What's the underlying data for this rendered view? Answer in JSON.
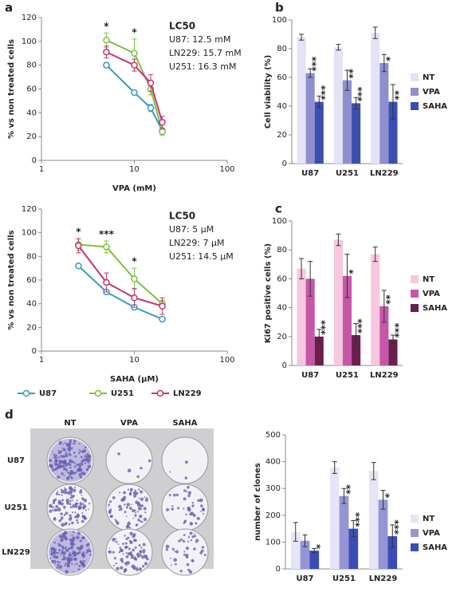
{
  "chart_data": [
    {
      "type": "line",
      "panel": "a",
      "x_label": "VPA (mM)",
      "y_label": "% vs non treated cells",
      "xscale": "log",
      "xlim": [
        1,
        100
      ],
      "xticks": [
        1,
        10,
        100
      ],
      "ylim": [
        0,
        120
      ],
      "yticks": [
        0,
        20,
        40,
        60,
        80,
        100,
        120
      ],
      "x": [
        5,
        10,
        15,
        20
      ],
      "annotations": [
        "*",
        "*",
        null,
        null
      ],
      "lc50_title": "LC50",
      "lc50_lines": [
        "U87: 12.5 mM",
        "LN229: 15.7 mM",
        "U251: 16.3 mM"
      ],
      "series": [
        {
          "name": "U87",
          "color": "#3a9ac4",
          "values": [
            80,
            57,
            44,
            25
          ],
          "errors": [
            2,
            1,
            3,
            2
          ]
        },
        {
          "name": "U251",
          "color": "#7cc242",
          "values": [
            101,
            90,
            60,
            24
          ],
          "errors": [
            6,
            12,
            5,
            3
          ]
        },
        {
          "name": "LN229",
          "color": "#c8336b",
          "values": [
            91,
            80,
            65,
            32
          ],
          "errors": [
            5,
            5,
            7,
            5
          ]
        }
      ]
    },
    {
      "type": "line",
      "x_label": "SAHA (µM)",
      "y_label": "% vs non treated cells",
      "xscale": "log",
      "xlim": [
        1,
        100
      ],
      "xticks": [
        1,
        10,
        100
      ],
      "ylim": [
        0,
        120
      ],
      "yticks": [
        0,
        20,
        40,
        60,
        80,
        100,
        120
      ],
      "x": [
        2.5,
        5,
        10,
        20
      ],
      "annotations": [
        "*",
        "***",
        "*",
        null
      ],
      "lc50_title": "LC50",
      "lc50_lines": [
        "U87: 5 µM",
        "LN229: 7 µM",
        "U251: 14.5 µM"
      ],
      "series": [
        {
          "color": "#3a9ac4",
          "values": [
            72,
            50,
            37,
            27
          ],
          "errors": [
            1,
            2,
            2,
            2
          ]
        },
        {
          "color": "#7cc242",
          "values": [
            90,
            88,
            61,
            40
          ],
          "errors": [
            5,
            5,
            9,
            3
          ]
        },
        {
          "color": "#c8336b",
          "values": [
            89,
            58,
            45,
            38
          ],
          "errors": [
            6,
            8,
            8,
            7
          ]
        }
      ]
    },
    {
      "type": "bar",
      "panel": "b",
      "y_label": "Cell viability (%)",
      "ylim": [
        0,
        100
      ],
      "yticks": [
        0,
        20,
        40,
        60,
        80,
        100
      ],
      "categories": [
        "U87",
        "U251",
        "LN229"
      ],
      "series": [
        {
          "name": "NT",
          "color": "#e3e3f5",
          "values": [
            88,
            81,
            91
          ],
          "errors": [
            2,
            2,
            4
          ],
          "annotations": [
            null,
            null,
            null
          ]
        },
        {
          "name": "VPA",
          "color": "#8f8fd0",
          "values": [
            63,
            58,
            70
          ],
          "errors": [
            3,
            7,
            6
          ],
          "annotations": [
            "***",
            "**",
            "*"
          ]
        },
        {
          "name": "SAHA",
          "color": "#3c4eb0",
          "values": [
            43,
            42,
            43
          ],
          "errors": [
            4,
            4,
            12
          ],
          "annotations": [
            "***",
            "***",
            "**"
          ]
        }
      ]
    },
    {
      "type": "bar",
      "panel": "c",
      "y_label": "Ki67 positive cells (%)",
      "ylim": [
        0,
        100
      ],
      "yticks": [
        0,
        20,
        40,
        60,
        80,
        100
      ],
      "categories": [
        "U87",
        "U251",
        "LN229"
      ],
      "series": [
        {
          "name": "NT",
          "color": "#f6c7df",
          "values": [
            67,
            87,
            77
          ],
          "errors": [
            7,
            4,
            5
          ],
          "annotations": [
            null,
            null,
            null
          ]
        },
        {
          "name": "VPA",
          "color": "#c657a8",
          "values": [
            60,
            62,
            41
          ],
          "errors": [
            12,
            15,
            11
          ],
          "annotations": [
            null,
            "*",
            "**"
          ]
        },
        {
          "name": "SAHA",
          "color": "#6b1f4d",
          "values": [
            20,
            21,
            18
          ],
          "errors": [
            5,
            8,
            3
          ],
          "annotations": [
            "***",
            "***",
            "***"
          ]
        }
      ]
    },
    {
      "type": "bar",
      "panel": "d",
      "y_label": "number of clones",
      "ylim": [
        0,
        500
      ],
      "yticks": [
        0,
        100,
        200,
        300,
        400,
        500
      ],
      "categories": [
        "U87",
        "U251",
        "LN229"
      ],
      "series": [
        {
          "name": "NT",
          "color": "#e5e5f5",
          "values": [
            138,
            378,
            365
          ],
          "errors": [
            35,
            22,
            32
          ],
          "annotations": [
            null,
            null,
            null
          ]
        },
        {
          "name": "VPA",
          "color": "#9595d5",
          "values": [
            105,
            272,
            258
          ],
          "errors": [
            22,
            28,
            35
          ],
          "annotations": [
            null,
            "**",
            "*"
          ]
        },
        {
          "name": "SAHA",
          "color": "#3b4db5",
          "values": [
            68,
            150,
            122
          ],
          "errors": [
            8,
            30,
            42
          ],
          "annotations": [
            "*",
            "***",
            "***"
          ]
        }
      ]
    }
  ],
  "plate_image": {
    "columns": [
      "NT",
      "VPA",
      "SAHA"
    ],
    "rows": [
      "U87",
      "U251",
      "LN229"
    ]
  }
}
